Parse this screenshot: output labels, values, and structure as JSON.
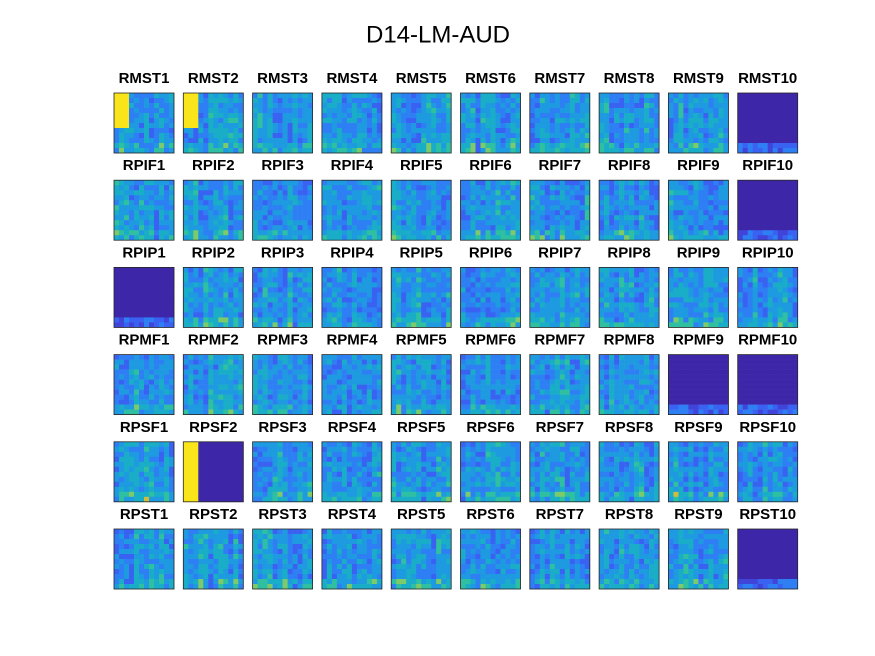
{
  "title": "D14-LM-AUD",
  "panels": [
    [
      "RMST1",
      "RMST2",
      "RMST3",
      "RMST4",
      "RMST5",
      "RMST6",
      "RMST7",
      "RMST8",
      "RMST9",
      "RMST10"
    ],
    [
      "RPIF1",
      "RPIF2",
      "RPIF3",
      "RPIF4",
      "RPIF5",
      "RPIF6",
      "RPIF7",
      "RPIF8",
      "RPIF9",
      "RPIF10"
    ],
    [
      "RPIP1",
      "RPIP2",
      "RPIP3",
      "RPIP4",
      "RPIP5",
      "RPIP6",
      "RPIP7",
      "RPIP8",
      "RPIP9",
      "RPIP10"
    ],
    [
      "RPMF1",
      "RPMF2",
      "RPMF3",
      "RPMF4",
      "RPMF5",
      "RPMF6",
      "RPMF7",
      "RPMF8",
      "RPMF9",
      "RPMF10"
    ],
    [
      "RPSF1",
      "RPSF2",
      "RPSF3",
      "RPSF4",
      "RPSF5",
      "RPSF6",
      "RPSF7",
      "RPSF8",
      "RPSF9",
      "RPSF10"
    ],
    [
      "RPST1",
      "RPST2",
      "RPST3",
      "RPST4",
      "RPST5",
      "RPST6",
      "RPST7",
      "RPST8",
      "RPST9",
      "RPST10"
    ]
  ]
}
